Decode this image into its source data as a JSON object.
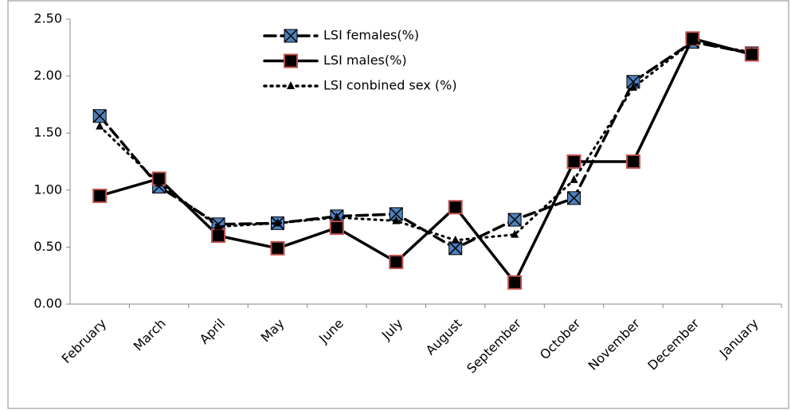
{
  "chart_data": {
    "type": "line",
    "categories": [
      "February",
      "March",
      "April",
      "May",
      "June",
      "July",
      "August",
      "September",
      "October",
      "November",
      "December",
      "January"
    ],
    "series": [
      {
        "name": "LSI females(%)",
        "color": "#000000",
        "dash": "dashed",
        "marker": "square-x",
        "marker_fill": "#4f81bd",
        "values": [
          1.65,
          1.03,
          0.7,
          0.71,
          0.77,
          0.79,
          0.49,
          0.74,
          0.93,
          1.95,
          2.3,
          2.2
        ]
      },
      {
        "name": "LSI males(%)",
        "color": "#000000",
        "dash": "solid",
        "marker": "square",
        "marker_fill": "#000000",
        "marker_edge": "#c0504d",
        "values": [
          0.95,
          1.1,
          0.6,
          0.49,
          0.67,
          0.37,
          0.85,
          0.19,
          1.25,
          1.25,
          2.33,
          2.19
        ]
      },
      {
        "name": "LSI conbined sex (%)",
        "color": "#000000",
        "dash": "dotted",
        "marker": "triangle",
        "marker_fill": "#000000",
        "values": [
          1.56,
          1.06,
          0.68,
          0.71,
          0.76,
          0.73,
          0.56,
          0.61,
          1.09,
          1.9,
          2.3,
          2.21
        ]
      }
    ],
    "ylim": [
      0,
      2.5
    ],
    "yticks": [
      {
        "value": 0,
        "label": "0.00"
      },
      {
        "value": 0.5,
        "label": "0.50"
      },
      {
        "value": 1,
        "label": "1.00"
      },
      {
        "value": 1.5,
        "label": "1.50"
      },
      {
        "value": 2,
        "label": "2.00"
      },
      {
        "value": 2.5,
        "label": "2.50"
      }
    ],
    "legend": "top"
  }
}
